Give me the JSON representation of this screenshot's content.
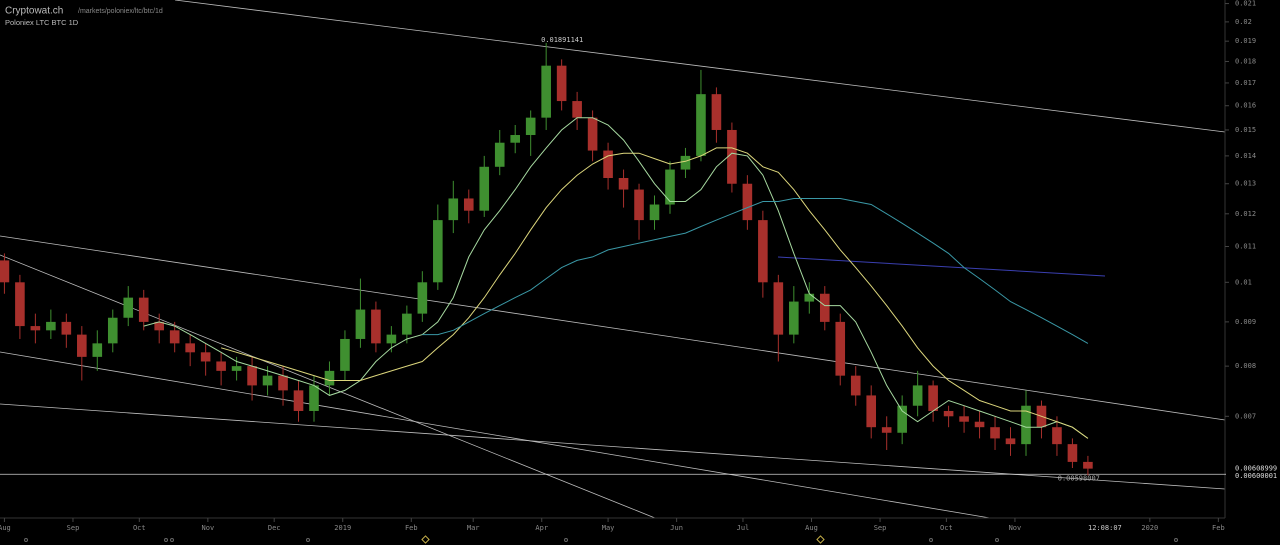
{
  "header": {
    "site": "Cryptowat.ch",
    "path": "/markets/poloniex/ltc/btc/1d",
    "pair_label": "Poloniex LTC BTC 1D"
  },
  "chart_data": {
    "type": "candlestick",
    "log_scale": true,
    "up_color": "#3f8f30",
    "down_color": "#a8302c",
    "x": [
      "2018-08-01",
      "2018-08-08",
      "2018-08-15",
      "2018-08-22",
      "2018-08-29",
      "2018-09-05",
      "2018-09-12",
      "2018-09-19",
      "2018-09-26",
      "2018-10-03",
      "2018-10-10",
      "2018-10-17",
      "2018-10-24",
      "2018-10-31",
      "2018-11-07",
      "2018-11-14",
      "2018-11-21",
      "2018-11-28",
      "2018-12-05",
      "2018-12-12",
      "2018-12-19",
      "2018-12-26",
      "2019-01-02",
      "2019-01-09",
      "2019-01-16",
      "2019-01-23",
      "2019-01-30",
      "2019-02-06",
      "2019-02-13",
      "2019-02-20",
      "2019-02-27",
      "2019-03-06",
      "2019-03-13",
      "2019-03-20",
      "2019-03-27",
      "2019-04-03",
      "2019-04-10",
      "2019-04-17",
      "2019-04-24",
      "2019-05-01",
      "2019-05-08",
      "2019-05-15",
      "2019-05-22",
      "2019-05-29",
      "2019-06-05",
      "2019-06-12",
      "2019-06-19",
      "2019-06-26",
      "2019-07-03",
      "2019-07-10",
      "2019-07-17",
      "2019-07-24",
      "2019-07-31",
      "2019-08-07",
      "2019-08-14",
      "2019-08-21",
      "2019-08-28",
      "2019-09-04",
      "2019-09-11",
      "2019-09-18",
      "2019-09-25",
      "2019-10-02",
      "2019-10-09",
      "2019-10-16",
      "2019-10-23",
      "2019-10-30",
      "2019-11-06",
      "2019-11-13",
      "2019-11-20",
      "2019-11-27",
      "2019-12-04"
    ],
    "open": [
      0.0106,
      0.01,
      0.0089,
      0.0088,
      0.009,
      0.0087,
      0.0082,
      0.0085,
      0.0091,
      0.0096,
      0.009,
      0.0088,
      0.0085,
      0.0083,
      0.0081,
      0.0079,
      0.008,
      0.0076,
      0.0078,
      0.0075,
      0.0071,
      0.0076,
      0.0079,
      0.0086,
      0.0093,
      0.0085,
      0.0087,
      0.0092,
      0.01,
      0.0118,
      0.0125,
      0.0121,
      0.0136,
      0.0145,
      0.0148,
      0.0155,
      0.0178,
      0.0162,
      0.0155,
      0.0142,
      0.0132,
      0.0128,
      0.0118,
      0.0123,
      0.0135,
      0.014,
      0.0165,
      0.015,
      0.013,
      0.0118,
      0.01,
      0.0087,
      0.0095,
      0.0097,
      0.009,
      0.0078,
      0.0074,
      0.0068,
      0.0067,
      0.0072,
      0.0076,
      0.0071,
      0.007,
      0.0069,
      0.0068,
      0.0066,
      0.0065,
      0.0072,
      0.0068,
      0.0065,
      0.0062
    ],
    "high": [
      0.0108,
      0.0102,
      0.0092,
      0.0093,
      0.0092,
      0.0089,
      0.0088,
      0.0093,
      0.0099,
      0.0098,
      0.0092,
      0.009,
      0.0087,
      0.0085,
      0.0083,
      0.0082,
      0.0082,
      0.008,
      0.008,
      0.0077,
      0.0078,
      0.0081,
      0.0088,
      0.0101,
      0.0095,
      0.0089,
      0.0094,
      0.0103,
      0.0123,
      0.0131,
      0.0128,
      0.014,
      0.015,
      0.0152,
      0.0158,
      0.01891141,
      0.0181,
      0.0166,
      0.0158,
      0.0145,
      0.0135,
      0.013,
      0.0126,
      0.0138,
      0.0143,
      0.0176,
      0.0168,
      0.0153,
      0.0133,
      0.0121,
      0.0102,
      0.0099,
      0.01,
      0.0099,
      0.0092,
      0.008,
      0.0076,
      0.007,
      0.0074,
      0.0079,
      0.0077,
      0.0072,
      0.0072,
      0.0071,
      0.007,
      0.0068,
      0.0075,
      0.0073,
      0.007,
      0.0066,
      0.0063
    ],
    "low": [
      0.0097,
      0.0086,
      0.0085,
      0.0086,
      0.0084,
      0.0077,
      0.0079,
      0.0083,
      0.0089,
      0.0088,
      0.0085,
      0.0083,
      0.008,
      0.0078,
      0.0076,
      0.0077,
      0.0073,
      0.0074,
      0.0072,
      0.0069,
      0.0069,
      0.0074,
      0.0077,
      0.0084,
      0.0083,
      0.0083,
      0.0085,
      0.009,
      0.0098,
      0.0114,
      0.0117,
      0.0119,
      0.0133,
      0.0141,
      0.014,
      0.015,
      0.0158,
      0.015,
      0.0138,
      0.0128,
      0.0122,
      0.0112,
      0.0115,
      0.012,
      0.0132,
      0.0138,
      0.0145,
      0.0127,
      0.0115,
      0.0096,
      0.0081,
      0.0085,
      0.0092,
      0.0088,
      0.0076,
      0.0072,
      0.0066,
      0.0064,
      0.0065,
      0.007,
      0.0069,
      0.0068,
      0.0067,
      0.0066,
      0.0064,
      0.0063,
      0.0063,
      0.0066,
      0.0063,
      0.0061,
      0.00598007
    ],
    "close": [
      0.01,
      0.0089,
      0.0088,
      0.009,
      0.0087,
      0.0082,
      0.0085,
      0.0091,
      0.0096,
      0.009,
      0.0088,
      0.0085,
      0.0083,
      0.0081,
      0.0079,
      0.008,
      0.0076,
      0.0078,
      0.0075,
      0.0071,
      0.0076,
      0.0079,
      0.0086,
      0.0093,
      0.0085,
      0.0087,
      0.0092,
      0.01,
      0.0118,
      0.0125,
      0.0121,
      0.0136,
      0.0145,
      0.0148,
      0.0155,
      0.0178,
      0.0162,
      0.0155,
      0.0142,
      0.0132,
      0.0128,
      0.0118,
      0.0123,
      0.0135,
      0.014,
      0.0165,
      0.015,
      0.013,
      0.0118,
      0.01,
      0.0087,
      0.0095,
      0.0097,
      0.009,
      0.0078,
      0.0074,
      0.0068,
      0.0067,
      0.0072,
      0.0076,
      0.0071,
      0.007,
      0.0069,
      0.0068,
      0.0066,
      0.0065,
      0.0072,
      0.0068,
      0.0065,
      0.0062,
      0.00608999
    ],
    "overlays": [
      {
        "color": "#a6d9a0",
        "values": [
          null,
          null,
          null,
          null,
          null,
          null,
          null,
          null,
          null,
          0.0089,
          0.009,
          0.0089,
          0.0087,
          0.0085,
          0.0083,
          0.0081,
          0.008,
          0.0079,
          0.0078,
          0.0077,
          0.0076,
          0.0074,
          0.0075,
          0.0077,
          0.0081,
          0.0084,
          0.0086,
          0.0087,
          0.009,
          0.0096,
          0.0107,
          0.0115,
          0.0121,
          0.0128,
          0.0136,
          0.0143,
          0.015,
          0.0155,
          0.0155,
          0.0152,
          0.0146,
          0.0138,
          0.013,
          0.0124,
          0.0124,
          0.0128,
          0.0136,
          0.0141,
          0.014,
          0.0133,
          0.0121,
          0.0108,
          0.0097,
          0.0094,
          0.0094,
          0.009,
          0.0083,
          0.0076,
          0.0071,
          0.0069,
          0.0071,
          0.0073,
          0.0072,
          0.0071,
          0.007,
          0.0069,
          0.0068,
          0.0068,
          0.0069,
          0.0068,
          0.0066
        ]
      },
      {
        "color": "#dcd67c",
        "values": [
          null,
          null,
          null,
          null,
          null,
          null,
          null,
          null,
          null,
          null,
          null,
          null,
          null,
          null,
          0.0084,
          0.0083,
          0.0082,
          0.0081,
          0.008,
          0.0079,
          0.0078,
          0.0077,
          0.0077,
          0.0077,
          0.0078,
          0.0079,
          0.008,
          0.0081,
          0.0084,
          0.0087,
          0.0091,
          0.0096,
          0.0102,
          0.0108,
          0.0115,
          0.0122,
          0.0128,
          0.0133,
          0.0137,
          0.014,
          0.0141,
          0.0141,
          0.0139,
          0.0137,
          0.0138,
          0.014,
          0.0143,
          0.0143,
          0.0141,
          0.0136,
          0.0134,
          0.0128,
          0.0121,
          0.0115,
          0.0109,
          0.0104,
          0.0099,
          0.0094,
          0.0089,
          0.0084,
          0.008,
          0.0077,
          0.0075,
          0.0073,
          0.0072,
          0.0071,
          0.0071,
          0.007,
          0.0069,
          0.0068,
          0.0066
        ]
      },
      {
        "color": "#3a98a6",
        "values": [
          null,
          null,
          null,
          null,
          null,
          null,
          null,
          null,
          null,
          null,
          null,
          null,
          null,
          null,
          null,
          null,
          null,
          null,
          null,
          null,
          null,
          null,
          null,
          null,
          null,
          null,
          null,
          0.0087,
          0.0087,
          0.0088,
          0.009,
          0.0092,
          0.0094,
          0.0096,
          0.0098,
          0.0101,
          0.0104,
          0.0106,
          0.0107,
          0.0109,
          0.011,
          0.0111,
          0.0112,
          0.0113,
          0.0114,
          0.0116,
          0.0118,
          0.012,
          0.0122,
          0.0124,
          0.0124,
          0.0125,
          0.0125,
          0.0125,
          0.0125,
          0.0124,
          0.0123,
          0.012,
          0.0117,
          0.0114,
          0.0111,
          0.0108,
          0.0104,
          0.0101,
          0.0098,
          0.0095,
          0.0093,
          0.0091,
          0.0089,
          0.0087,
          0.0085
        ]
      }
    ],
    "hline": 0.00600001,
    "time_label": "12:08:07",
    "xlim": [
      "2018-07-30",
      "2020-02-04"
    ],
    "xticks": [
      {
        "value": "2018-08-01",
        "label": "Aug"
      },
      {
        "value": "2018-09-01",
        "label": "Sep"
      },
      {
        "value": "2018-10-01",
        "label": "Oct"
      },
      {
        "value": "2018-11-01",
        "label": "Nov"
      },
      {
        "value": "2018-12-01",
        "label": "Dec"
      },
      {
        "value": "2019-01-01",
        "label": "2019"
      },
      {
        "value": "2019-02-01",
        "label": "Feb"
      },
      {
        "value": "2019-03-01",
        "label": "Mar"
      },
      {
        "value": "2019-04-01",
        "label": "Apr"
      },
      {
        "value": "2019-05-01",
        "label": "May"
      },
      {
        "value": "2019-06-01",
        "label": "Jun"
      },
      {
        "value": "2019-07-01",
        "label": "Jul"
      },
      {
        "value": "2019-08-01",
        "label": "Aug"
      },
      {
        "value": "2019-09-01",
        "label": "Sep"
      },
      {
        "value": "2019-10-01",
        "label": "Oct"
      },
      {
        "value": "2019-11-01",
        "label": "Nov"
      },
      {
        "value": "2020-01-01",
        "label": "2020"
      },
      {
        "value": "2020-02-01",
        "label": "Feb"
      }
    ],
    "ylim": [
      0.00534,
      0.0212
    ],
    "yticks": [
      0.006,
      0.007,
      0.008,
      0.009,
      0.01,
      0.011,
      0.012,
      0.013,
      0.014,
      0.015,
      0.016,
      0.017,
      0.018,
      0.019,
      0.02,
      0.021
    ]
  }
}
